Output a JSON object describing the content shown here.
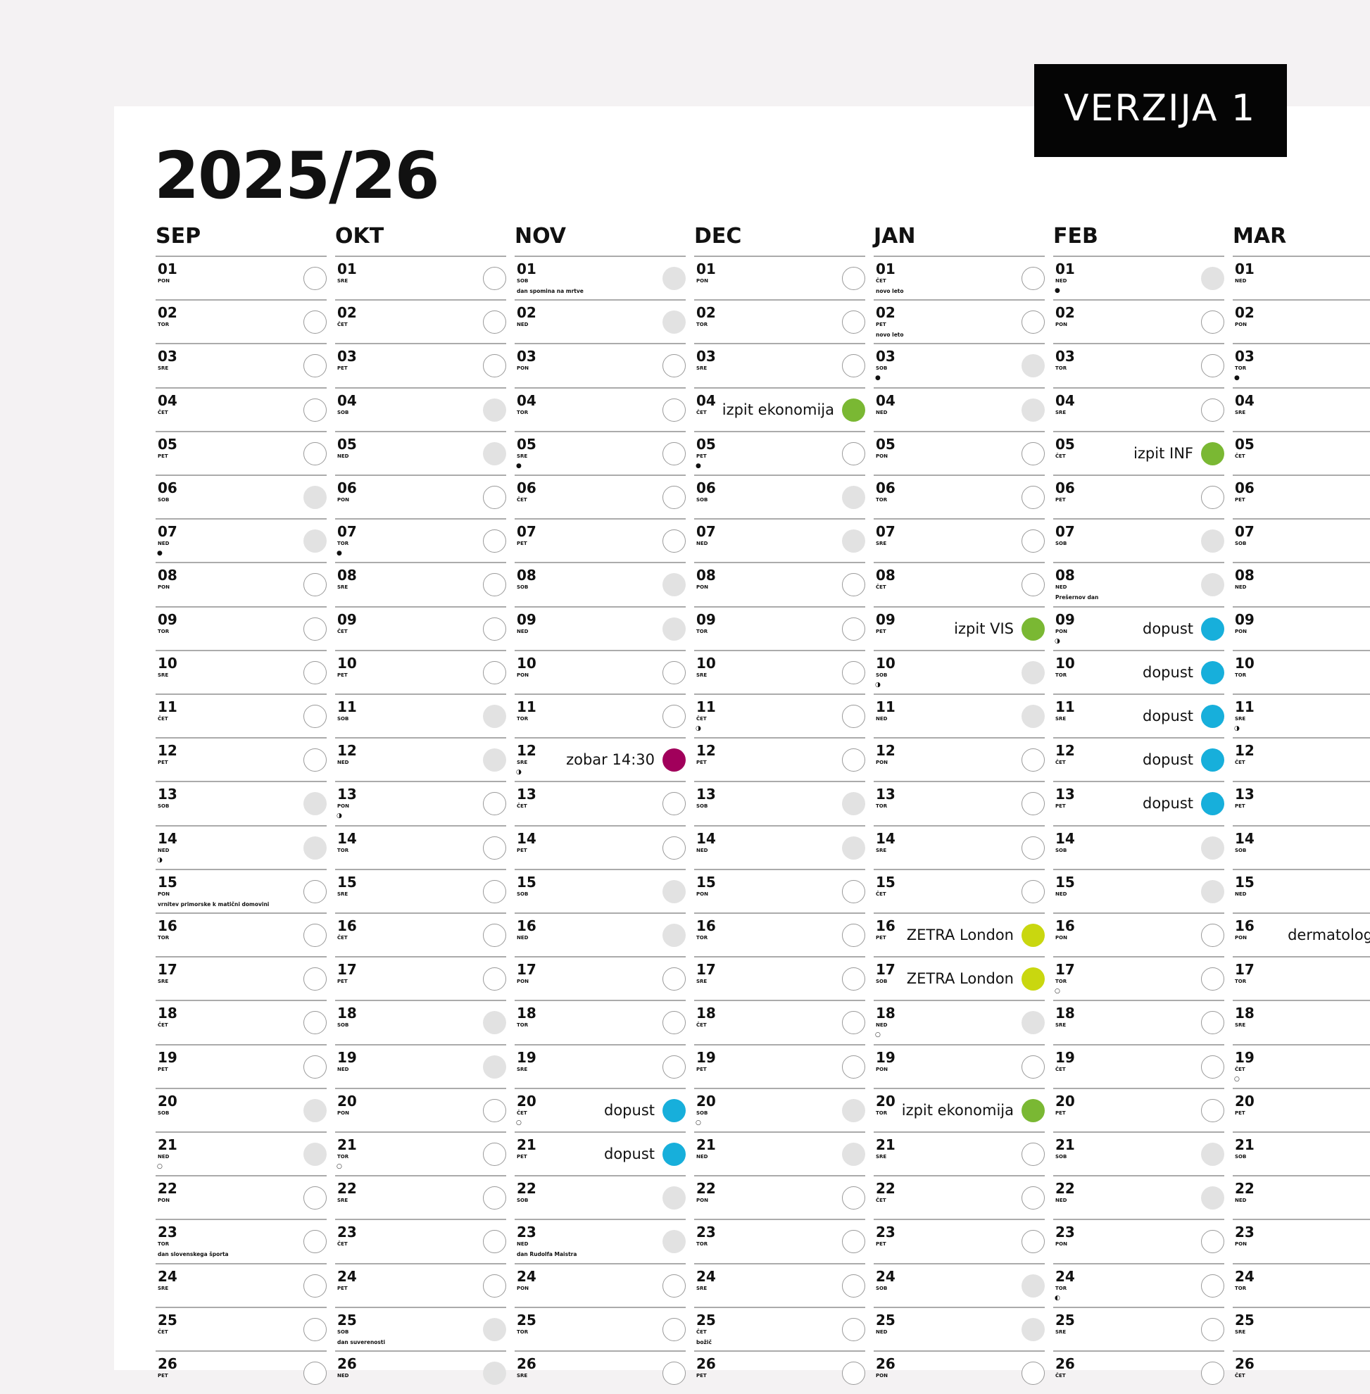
{
  "badge": "VERZIJA 1",
  "title": "2025/26",
  "colors": {
    "green": "#7ab833",
    "blue": "#17afdb",
    "magenta": "#a1005b",
    "lime": "#c9d70f",
    "weekend": "#e2e2e2",
    "outline": "#9a9a9a"
  },
  "moon_icons": {
    "full": "●",
    "new": "○",
    "last-quarter": "◑",
    "first-quarter": "◐"
  },
  "day_numbers": [
    "01",
    "02",
    "03",
    "04",
    "05",
    "06",
    "07",
    "08",
    "09",
    "10",
    "11",
    "12",
    "13",
    "14",
    "15",
    "16",
    "17",
    "18",
    "19",
    "20",
    "21",
    "22",
    "23",
    "24",
    "25",
    "26"
  ],
  "months": [
    {
      "label": "SEP",
      "weekdays": [
        "PON",
        "TOR",
        "SRE",
        "ČET",
        "PET",
        "SOB",
        "NED",
        "PON",
        "TOR",
        "SRE",
        "ČET",
        "PET",
        "SOB",
        "NED",
        "PON",
        "TOR",
        "SRE",
        "ČET",
        "PET",
        "SOB",
        "NED",
        "PON",
        "TOR",
        "SRE",
        "ČET",
        "PET"
      ],
      "holidays": {
        "15": "vrnitev primorske k matični domovini",
        "23": "dan slovenskega športa"
      },
      "moons": {
        "07": "full",
        "14": "last-quarter",
        "21": "new"
      },
      "events": {}
    },
    {
      "label": "OKT",
      "weekdays": [
        "SRE",
        "ČET",
        "PET",
        "SOB",
        "NED",
        "PON",
        "TOR",
        "SRE",
        "ČET",
        "PET",
        "SOB",
        "NED",
        "PON",
        "TOR",
        "SRE",
        "ČET",
        "PET",
        "SOB",
        "NED",
        "PON",
        "TOR",
        "SRE",
        "ČET",
        "PET",
        "SOB",
        "NED"
      ],
      "holidays": {
        "25": "dan suverenosti"
      },
      "moons": {
        "07": "full",
        "13": "last-quarter",
        "21": "new"
      },
      "events": {}
    },
    {
      "label": "NOV",
      "weekdays": [
        "SOB",
        "NED",
        "PON",
        "TOR",
        "SRE",
        "ČET",
        "PET",
        "SOB",
        "NED",
        "PON",
        "TOR",
        "SRE",
        "ČET",
        "PET",
        "SOB",
        "NED",
        "PON",
        "TOR",
        "SRE",
        "ČET",
        "PET",
        "SOB",
        "NED",
        "PON",
        "TOR",
        "SRE"
      ],
      "holidays": {
        "01": "dan spomina na mrtve",
        "23": "dan Rudolfa Maistra"
      },
      "moons": {
        "05": "full",
        "12": "last-quarter",
        "20": "new"
      },
      "events": {
        "12": {
          "text": "zobar 14:30",
          "color": "magenta"
        },
        "20": {
          "text": "dopust",
          "color": "blue"
        },
        "21": {
          "text": "dopust",
          "color": "blue"
        }
      }
    },
    {
      "label": "DEC",
      "weekdays": [
        "PON",
        "TOR",
        "SRE",
        "ČET",
        "PET",
        "SOB",
        "NED",
        "PON",
        "TOR",
        "SRE",
        "ČET",
        "PET",
        "SOB",
        "NED",
        "PON",
        "TOR",
        "SRE",
        "ČET",
        "PET",
        "SOB",
        "NED",
        "PON",
        "TOR",
        "SRE",
        "ČET",
        "PET"
      ],
      "holidays": {
        "25": "božič"
      },
      "moons": {
        "05": "full",
        "11": "last-quarter",
        "20": "new"
      },
      "events": {
        "04": {
          "text": "izpit ekonomija",
          "color": "green"
        }
      }
    },
    {
      "label": "JAN",
      "weekdays": [
        "ČET",
        "PET",
        "SOB",
        "NED",
        "PON",
        "TOR",
        "SRE",
        "ČET",
        "PET",
        "SOB",
        "NED",
        "PON",
        "TOR",
        "SRE",
        "ČET",
        "PET",
        "SOB",
        "NED",
        "PON",
        "TOR",
        "SRE",
        "ČET",
        "PET",
        "SOB",
        "NED",
        "PON"
      ],
      "holidays": {
        "01": "novo leto",
        "02": "novo leto"
      },
      "moons": {
        "03": "full",
        "10": "last-quarter",
        "18": "new"
      },
      "events": {
        "09": {
          "text": "izpit VIS",
          "color": "green"
        },
        "16": {
          "text": "ZETRA London",
          "color": "lime"
        },
        "17": {
          "text": "ZETRA London",
          "color": "lime"
        },
        "20": {
          "text": "izpit ekonomija",
          "color": "green"
        }
      }
    },
    {
      "label": "FEB",
      "weekdays": [
        "NED",
        "PON",
        "TOR",
        "SRE",
        "ČET",
        "PET",
        "SOB",
        "NED",
        "PON",
        "TOR",
        "SRE",
        "ČET",
        "PET",
        "SOB",
        "NED",
        "PON",
        "TOR",
        "SRE",
        "ČET",
        "PET",
        "SOB",
        "NED",
        "PON",
        "TOR",
        "SRE",
        "ČET"
      ],
      "holidays": {
        "08": "Prešernov dan"
      },
      "moons": {
        "01": "full",
        "09": "last-quarter",
        "17": "new",
        "24": "first-quarter"
      },
      "events": {
        "05": {
          "text": "izpit INF",
          "color": "green"
        },
        "09": {
          "text": "dopust",
          "color": "blue"
        },
        "10": {
          "text": "dopust",
          "color": "blue"
        },
        "11": {
          "text": "dopust",
          "color": "blue"
        },
        "12": {
          "text": "dopust",
          "color": "blue"
        },
        "13": {
          "text": "dopust",
          "color": "blue"
        }
      }
    },
    {
      "label": "MAR",
      "weekdays": [
        "NED",
        "PON",
        "TOR",
        "SRE",
        "ČET",
        "PET",
        "SOB",
        "NED",
        "PON",
        "TOR",
        "SRE",
        "ČET",
        "PET",
        "SOB",
        "NED",
        "PON",
        "TOR",
        "SRE",
        "ČET",
        "PET",
        "SOB",
        "NED",
        "PON",
        "TOR",
        "SRE",
        "ČET"
      ],
      "holidays": {},
      "moons": {
        "03": "full",
        "11": "last-quarter",
        "19": "new"
      },
      "events": {
        "16": {
          "text": "dermatolog",
          "color": "blue"
        }
      }
    }
  ]
}
